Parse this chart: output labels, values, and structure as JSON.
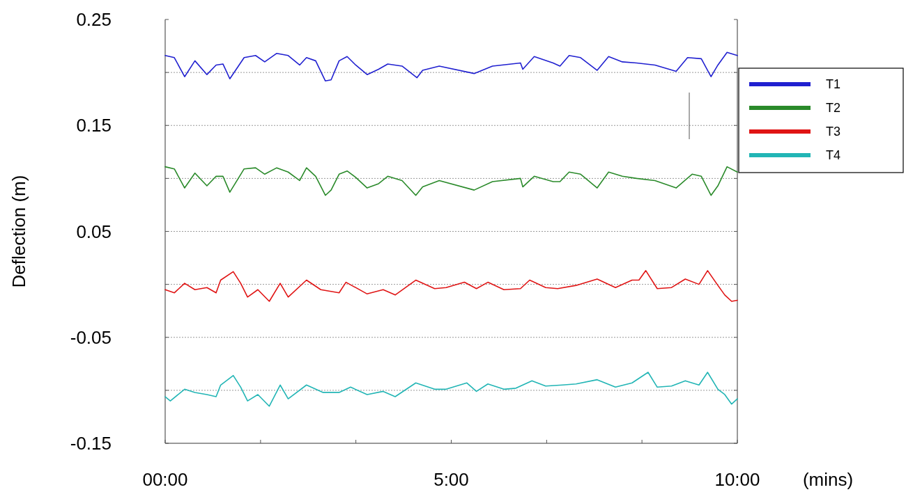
{
  "chart_data": {
    "type": "line",
    "xlabel": "(mins)",
    "ylabel": "Deflection (m)",
    "xlim": [
      0,
      10
    ],
    "ylim": [
      -0.15,
      0.25
    ],
    "xticks": [
      {
        "value": 0,
        "label": "00:00"
      },
      {
        "value": 1.667,
        "label": null
      },
      {
        "value": 3.333,
        "label": null
      },
      {
        "value": 5,
        "label": "5:00"
      },
      {
        "value": 6.667,
        "label": null
      },
      {
        "value": 8.333,
        "label": null
      },
      {
        "value": 10,
        "label": "10:00"
      }
    ],
    "yticks": [
      -0.15,
      {
        "value": -0.1,
        "label": null
      },
      -0.05,
      {
        "value": 0,
        "label": null
      },
      0.05,
      {
        "value": 0.1,
        "label": null
      },
      0.15,
      {
        "value": 0.2,
        "label": null
      },
      0.25
    ],
    "grid": "y",
    "legend": "right",
    "line_style": "solid",
    "marker": "none",
    "series": [
      {
        "name": "T1",
        "color": "#2020d0",
        "x": [
          0,
          0.16,
          0.34,
          0.52,
          0.73,
          0.89,
          1.01,
          1.13,
          1.38,
          1.58,
          1.74,
          1.95,
          2.15,
          2.35,
          2.47,
          2.63,
          2.8,
          2.9,
          3.04,
          3.18,
          3.33,
          3.53,
          3.73,
          3.89,
          4.14,
          4.4,
          4.5,
          4.79,
          5.4,
          5.72,
          6.21,
          6.25,
          6.45,
          6.78,
          6.9,
          7.06,
          7.26,
          7.55,
          7.75,
          7.99,
          8.24,
          8.56,
          8.93,
          9.13,
          9.37,
          9.54,
          9.66,
          9.82,
          10
        ],
        "values": [
          0.216,
          0.214,
          0.196,
          0.211,
          0.198,
          0.207,
          0.208,
          0.194,
          0.214,
          0.216,
          0.21,
          0.218,
          0.216,
          0.207,
          0.214,
          0.211,
          0.192,
          0.193,
          0.211,
          0.215,
          0.207,
          0.198,
          0.203,
          0.208,
          0.206,
          0.195,
          0.202,
          0.206,
          0.199,
          0.206,
          0.209,
          0.203,
          0.215,
          0.209,
          0.206,
          0.216,
          0.214,
          0.202,
          0.215,
          0.21,
          0.209,
          0.207,
          0.201,
          0.214,
          0.213,
          0.196,
          0.207,
          0.219,
          0.216
        ]
      },
      {
        "name": "T2",
        "color": "#2a8a2a",
        "x": [
          0,
          0.16,
          0.34,
          0.52,
          0.73,
          0.89,
          1.01,
          1.13,
          1.38,
          1.58,
          1.74,
          1.95,
          2.15,
          2.35,
          2.47,
          2.63,
          2.8,
          2.9,
          3.04,
          3.18,
          3.33,
          3.53,
          3.73,
          3.89,
          4.14,
          4.38,
          4.5,
          4.79,
          5.4,
          5.72,
          6.21,
          6.25,
          6.45,
          6.78,
          6.9,
          7.06,
          7.26,
          7.55,
          7.75,
          7.99,
          8.24,
          8.56,
          8.93,
          9.21,
          9.37,
          9.54,
          9.66,
          9.82,
          10
        ],
        "values": [
          0.111,
          0.109,
          0.091,
          0.105,
          0.093,
          0.102,
          0.102,
          0.087,
          0.109,
          0.11,
          0.104,
          0.11,
          0.106,
          0.098,
          0.11,
          0.102,
          0.084,
          0.089,
          0.104,
          0.107,
          0.101,
          0.091,
          0.095,
          0.102,
          0.098,
          0.084,
          0.092,
          0.098,
          0.089,
          0.097,
          0.1,
          0.092,
          0.102,
          0.097,
          0.097,
          0.106,
          0.104,
          0.091,
          0.106,
          0.102,
          0.1,
          0.098,
          0.091,
          0.104,
          0.102,
          0.084,
          0.093,
          0.111,
          0.106
        ]
      },
      {
        "name": "T3",
        "color": "#e01414",
        "x": [
          0,
          0.16,
          0.34,
          0.52,
          0.73,
          0.89,
          0.97,
          1.19,
          1.32,
          1.44,
          1.62,
          1.82,
          2.01,
          2.15,
          2.47,
          2.72,
          3.04,
          3.16,
          3.53,
          3.81,
          4.02,
          4.38,
          4.71,
          4.91,
          5.23,
          5.44,
          5.64,
          5.92,
          6.21,
          6.37,
          6.65,
          6.86,
          7.18,
          7.55,
          7.87,
          8.16,
          8.28,
          8.4,
          8.6,
          8.85,
          9.09,
          9.33,
          9.48,
          9.66,
          9.78,
          9.9,
          10
        ],
        "values": [
          -0.005,
          -0.008,
          0.001,
          -0.005,
          -0.003,
          -0.008,
          0.004,
          0.012,
          0.001,
          -0.012,
          -0.005,
          -0.016,
          0.001,
          -0.012,
          0.004,
          -0.005,
          -0.008,
          0.002,
          -0.009,
          -0.005,
          -0.01,
          0.004,
          -0.004,
          -0.003,
          0.002,
          -0.004,
          0.002,
          -0.005,
          -0.004,
          0.004,
          -0.003,
          -0.004,
          -0.001,
          0.005,
          -0.003,
          0.004,
          0.004,
          0.013,
          -0.004,
          -0.003,
          0.005,
          0,
          0.013,
          -0.001,
          -0.01,
          -0.016,
          -0.015
        ]
      },
      {
        "name": "T4",
        "color": "#22b5b5",
        "x": [
          0,
          0.09,
          0.34,
          0.52,
          0.73,
          0.89,
          0.97,
          1.19,
          1.32,
          1.44,
          1.62,
          1.82,
          2.01,
          2.15,
          2.47,
          2.76,
          3.04,
          3.24,
          3.53,
          3.81,
          4.02,
          4.38,
          4.71,
          4.91,
          5.27,
          5.44,
          5.64,
          5.92,
          6.13,
          6.41,
          6.65,
          6.94,
          7.18,
          7.55,
          7.87,
          8.16,
          8.44,
          8.6,
          8.85,
          9.09,
          9.33,
          9.48,
          9.66,
          9.78,
          9.9,
          10
        ],
        "values": [
          -0.106,
          -0.11,
          -0.099,
          -0.102,
          -0.104,
          -0.106,
          -0.095,
          -0.086,
          -0.097,
          -0.11,
          -0.104,
          -0.115,
          -0.095,
          -0.108,
          -0.095,
          -0.102,
          -0.102,
          -0.097,
          -0.104,
          -0.101,
          -0.106,
          -0.093,
          -0.099,
          -0.099,
          -0.093,
          -0.101,
          -0.094,
          -0.099,
          -0.098,
          -0.091,
          -0.096,
          -0.095,
          -0.094,
          -0.09,
          -0.097,
          -0.093,
          -0.083,
          -0.097,
          -0.096,
          -0.091,
          -0.095,
          -0.083,
          -0.099,
          -0.104,
          -0.113,
          -0.108
        ]
      }
    ]
  }
}
